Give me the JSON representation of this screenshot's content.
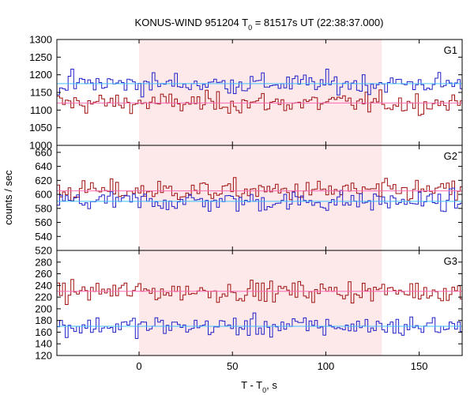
{
  "chart_data": {
    "type": "line",
    "title": {
      "prefix": "KONUS-WIND 951204 T",
      "sub": "0",
      "suffix": " = 81517s UT (22:38:37.000)"
    },
    "xlabel": {
      "prefix": "T - T",
      "sub": "0",
      "suffix": ", s"
    },
    "ylabel": "counts / sec",
    "xlim": [
      -44,
      173
    ],
    "x_ticks": [
      0,
      50,
      100,
      150
    ],
    "highlight_interval": [
      0,
      130
    ],
    "colors": {
      "red_series": "#a01010",
      "blue_series": "#2020c8",
      "red_mean": "#ff69b4",
      "blue_mean": "#40c0ff",
      "highlight": "#fde8ea"
    },
    "panels": [
      {
        "name": "G1",
        "ylim": [
          1000,
          1300
        ],
        "y_ticks": [
          1000,
          1050,
          1100,
          1150,
          1200,
          1250,
          1300
        ],
        "blue_mean": 1175,
        "red_mean": 1120
      },
      {
        "name": "G2",
        "ylim": [
          520,
          670
        ],
        "y_ticks": [
          520,
          540,
          560,
          580,
          600,
          620,
          640,
          660
        ],
        "blue_mean": 590,
        "red_mean": 605
      },
      {
        "name": "G3",
        "ylim": [
          120,
          300
        ],
        "y_ticks": [
          120,
          140,
          160,
          180,
          200,
          220,
          240,
          260,
          280
        ],
        "blue_mean": 170,
        "red_mean": 230
      }
    ]
  }
}
